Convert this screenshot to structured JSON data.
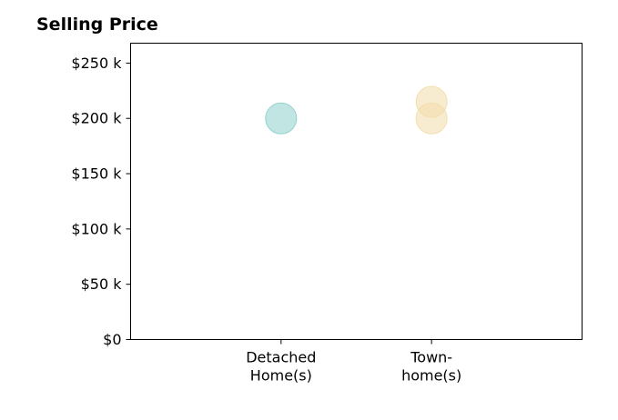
{
  "chart_data": {
    "type": "scatter",
    "title": "Selling Price",
    "xlabel": "",
    "ylabel": "",
    "categories": [
      "Detached\nHome(s)",
      "Town-\nhome(s)"
    ],
    "ylim": [
      0,
      268000
    ],
    "yticks": [
      {
        "value": 0,
        "label": "$0"
      },
      {
        "value": 50000,
        "label": "$50 k"
      },
      {
        "value": 100000,
        "label": "$100 k"
      },
      {
        "value": 150000,
        "label": "$150 k"
      },
      {
        "value": 200000,
        "label": "$200 k"
      },
      {
        "value": 250000,
        "label": "$250 k"
      }
    ],
    "points": [
      {
        "category": 0,
        "y": 200000,
        "color": "#8ccfcb"
      },
      {
        "category": 1,
        "y": 215000,
        "color": "#f2dca9"
      },
      {
        "category": 1,
        "y": 200000,
        "color": "#f2dca9"
      }
    ],
    "grid": false
  }
}
